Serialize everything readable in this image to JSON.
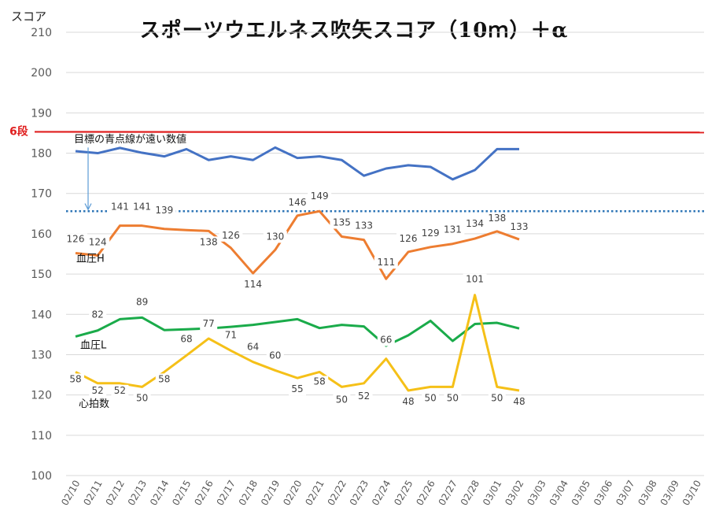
{
  "chart_data": {
    "type": "line",
    "title": "スポーツウエルネス吹矢スコア（10ｍ）＋α",
    "ylabel": "スコア",
    "xlabel": "",
    "ylim": [
      100,
      210
    ],
    "yticks": [
      100,
      110,
      120,
      130,
      140,
      150,
      160,
      170,
      180,
      190,
      200,
      210
    ],
    "grid": true,
    "categories": [
      "02/10",
      "02/11",
      "02/12",
      "02/13",
      "02/14",
      "02/15",
      "02/16",
      "02/17",
      "02/18",
      "02/19",
      "02/20",
      "02/21",
      "02/22",
      "02/23",
      "02/24",
      "02/25",
      "02/26",
      "02/27",
      "02/28",
      "03/01",
      "03/02",
      "03/03",
      "03/04",
      "03/05",
      "03/06",
      "03/07",
      "03/08",
      "03/09",
      "03/10"
    ],
    "reference_lines": [
      {
        "label": "6段",
        "y": 185.3,
        "color": "#e02020",
        "style": "solid"
      },
      {
        "label": "",
        "y": 165.6,
        "color": "#2e75b6",
        "style": "dotted"
      }
    ],
    "annotations": [
      {
        "text": "目標の青点線が遠い数値"
      },
      {
        "text": "血圧H"
      },
      {
        "text": "血圧L"
      },
      {
        "text": "心拍数"
      }
    ],
    "series": [
      {
        "name": "",
        "color": "#4472c4",
        "x": [
          "02/10",
          "02/11",
          "02/12",
          "02/13",
          "02/14",
          "02/15",
          "02/16",
          "02/17",
          "02/18",
          "02/19",
          "02/20",
          "02/21",
          "02/22",
          "02/23",
          "02/24",
          "02/25",
          "02/26",
          "02/27",
          "02/28",
          "03/01",
          "03/02"
        ],
        "values": [
          180.5,
          180.0,
          181.3,
          180.1,
          179.2,
          181.0,
          178.3,
          179.2,
          178.3,
          181.4,
          178.8,
          179.2,
          178.3,
          174.4,
          176.2,
          177.0,
          176.6,
          173.5,
          175.8,
          181.0,
          181.0
        ],
        "labels": []
      },
      {
        "name": "血圧H",
        "color": "#ed7d31",
        "x": [
          "02/10",
          "02/11",
          "02/12",
          "02/13",
          "02/14",
          "02/15",
          "02/16",
          "02/17",
          "02/18",
          "02/19",
          "02/20",
          "02/21",
          "02/22",
          "02/23",
          "02/24",
          "02/25",
          "02/26",
          "02/27",
          "02/28",
          "03/01",
          "03/02"
        ],
        "values": [
          155.2,
          154.6,
          162.0,
          162.0,
          161.2,
          160.9,
          160.7,
          156.5,
          150.2,
          156.0,
          164.5,
          165.6,
          159.3,
          158.5,
          148.8,
          155.5,
          156.7,
          157.5,
          158.8,
          160.6,
          158.6
        ],
        "labels": [
          "126",
          "124",
          "141",
          "141",
          "139",
          "",
          "138",
          "126",
          "114",
          "130",
          "146",
          "149",
          "135",
          "133",
          "111",
          "126",
          "129",
          "131",
          "134",
          "138",
          "133"
        ]
      },
      {
        "name": "血圧L",
        "color": "#1aab4a",
        "x": [
          "02/10",
          "02/11",
          "02/12",
          "02/13",
          "02/14",
          "02/15",
          "02/16",
          "02/17",
          "02/18",
          "02/19",
          "02/20",
          "02/21",
          "02/22",
          "02/23",
          "02/24",
          "02/25",
          "02/26",
          "02/27",
          "02/28",
          "03/01",
          "03/02"
        ],
        "values": [
          134.5,
          136.0,
          138.8,
          139.2,
          136.1,
          136.3,
          136.5,
          136.9,
          137.4,
          138.1,
          138.8,
          136.6,
          137.4,
          137.0,
          132.2,
          134.8,
          138.4,
          133.4,
          137.6,
          137.9,
          136.5
        ],
        "labels": [
          "",
          "82",
          "",
          "89",
          "",
          "",
          "",
          "",
          "",
          "",
          "",
          "",
          "",
          "",
          "",
          "",
          "",
          "",
          "",
          "",
          ""
        ]
      },
      {
        "name": "心拍数",
        "color": "#f5c018",
        "x": [
          "02/10",
          "02/11",
          "02/12",
          "02/13",
          "02/14",
          "02/15",
          "02/16",
          "02/17",
          "02/18",
          "02/19",
          "02/20",
          "02/21",
          "02/22",
          "02/23",
          "02/24",
          "02/25",
          "02/26",
          "02/27",
          "02/28",
          "03/01",
          "03/02"
        ],
        "values": [
          125.7,
          122.9,
          122.9,
          122.0,
          125.7,
          129.8,
          134.0,
          131.0,
          128.2,
          126.1,
          124.2,
          125.7,
          122.0,
          122.9,
          129.0,
          121.1,
          122.0,
          122.0,
          144.8,
          122.0,
          121.1
        ],
        "labels": [
          "58",
          "52",
          "52",
          "50",
          "58",
          "68",
          "77",
          "71",
          "64",
          "60",
          "55",
          "58",
          "50",
          "52",
          "66",
          "48",
          "50",
          "50",
          "101",
          "50",
          "48"
        ]
      }
    ]
  }
}
